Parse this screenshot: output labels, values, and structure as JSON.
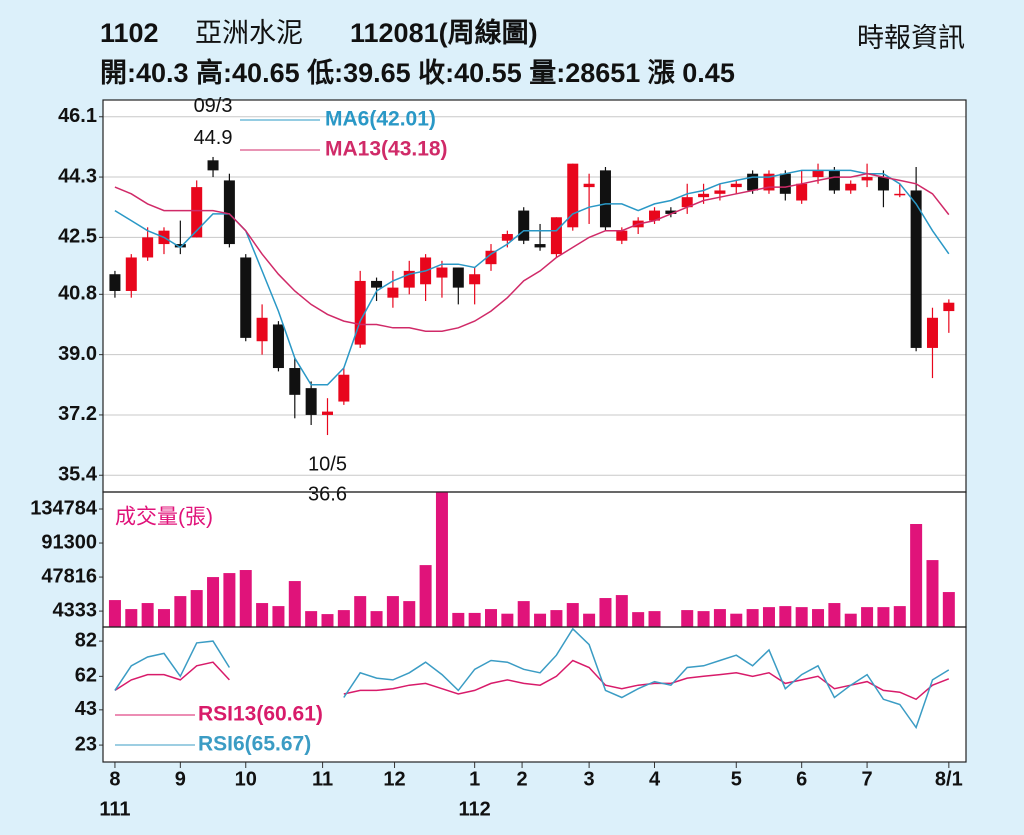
{
  "header": {
    "code": "1102",
    "name": "亞洲水泥",
    "period": "112081(周線圖)",
    "source": "時報資訊",
    "quote": "開:40.3 高:40.65 低:39.65 收:40.55 量:28651 漲 0.45"
  },
  "chart_data": [
    {
      "type": "candlestick",
      "up_color": "#e8061c",
      "down_color": "#111111",
      "grid": true,
      "xlim": [
        -0.73,
        52.05
      ],
      "ylim": [
        34.9,
        46.6
      ],
      "yticks": [
        46.1,
        44.3,
        42.5,
        40.8,
        {
          "value": 39,
          "label": "39.0"
        },
        37.2,
        35.4
      ],
      "open": [
        41.4,
        40.9,
        41.9,
        42.3,
        42.3,
        42.5,
        44.8,
        44.2,
        41.9,
        39.4,
        39.9,
        38.6,
        38.0,
        37.2,
        37.6,
        39.3,
        41.2,
        40.7,
        41.0,
        41.1,
        41.3,
        41.6,
        41.1,
        41.7,
        42.4,
        43.3,
        42.3,
        42.0,
        42.8,
        44.0,
        44.5,
        42.4,
        42.8,
        43.0,
        43.3,
        43.4,
        43.7,
        43.8,
        44.0,
        44.4,
        43.9,
        44.4,
        43.6,
        44.3,
        44.5,
        43.9,
        44.2,
        44.3,
        43.8,
        43.9,
        39.2,
        40.3
      ],
      "high": [
        41.5,
        42.0,
        42.8,
        42.8,
        43.0,
        44.2,
        44.9,
        44.4,
        42.0,
        40.5,
        40.0,
        38.9,
        38.2,
        37.7,
        38.6,
        41.5,
        41.3,
        41.5,
        41.8,
        42.0,
        41.8,
        41.6,
        41.6,
        42.3,
        42.7,
        43.4,
        42.9,
        43.1,
        44.7,
        44.4,
        44.6,
        42.8,
        43.1,
        43.4,
        43.4,
        44.1,
        44.1,
        44.1,
        44.2,
        44.5,
        44.5,
        44.5,
        44.5,
        44.7,
        44.6,
        44.2,
        44.7,
        44.5,
        44.1,
        44.6,
        40.4,
        40.65
      ],
      "low": [
        40.7,
        40.7,
        41.8,
        42.0,
        42.0,
        42.5,
        44.3,
        42.2,
        39.4,
        39.0,
        38.5,
        37.1,
        36.9,
        36.6,
        37.5,
        39.2,
        40.6,
        40.4,
        40.8,
        40.6,
        40.7,
        40.5,
        40.5,
        41.5,
        42.2,
        42.3,
        42.1,
        41.9,
        42.7,
        42.9,
        42.7,
        42.3,
        42.6,
        42.9,
        43.1,
        43.2,
        43.5,
        43.6,
        43.8,
        43.8,
        43.8,
        43.6,
        43.5,
        44.1,
        43.8,
        43.8,
        44.0,
        43.4,
        43.7,
        39.1,
        38.3,
        39.65
      ],
      "close": [
        40.9,
        41.9,
        42.5,
        42.7,
        42.2,
        44.0,
        44.5,
        42.3,
        39.5,
        40.1,
        38.6,
        37.8,
        37.2,
        37.3,
        38.4,
        41.2,
        41.0,
        41.0,
        41.5,
        41.9,
        41.6,
        41.0,
        41.4,
        42.1,
        42.6,
        42.4,
        42.2,
        43.1,
        44.7,
        44.1,
        42.8,
        42.7,
        43.0,
        43.3,
        43.2,
        43.7,
        43.8,
        43.9,
        44.1,
        43.9,
        44.4,
        43.8,
        44.1,
        44.5,
        43.9,
        44.1,
        44.3,
        43.9,
        43.8,
        39.2,
        40.1,
        40.55
      ],
      "series": [
        {
          "name": "MA6(42.01)",
          "color": "#2a98c6",
          "values": [
            43.3,
            43.0,
            42.7,
            42.5,
            42.2,
            42.7,
            43.2,
            43.2,
            42.7,
            41.5,
            40.3,
            38.9,
            38.1,
            38.1,
            38.6,
            40.0,
            40.9,
            41.2,
            41.4,
            41.5,
            41.7,
            41.7,
            41.6,
            42.0,
            42.3,
            42.7,
            42.7,
            42.7,
            43.2,
            43.4,
            43.5,
            43.5,
            43.3,
            43.5,
            43.6,
            43.8,
            43.9,
            44.1,
            44.2,
            44.3,
            44.3,
            44.4,
            44.5,
            44.5,
            44.5,
            44.5,
            44.4,
            44.4,
            44.1,
            43.5,
            42.7,
            42.01
          ]
        },
        {
          "name": "MA13(43.18)",
          "color": "#d02a68",
          "values": [
            44.0,
            43.8,
            43.5,
            43.3,
            43.3,
            43.3,
            43.3,
            43.2,
            42.7,
            42.0,
            41.4,
            40.9,
            40.5,
            40.2,
            40.0,
            39.9,
            39.9,
            39.8,
            39.8,
            39.7,
            39.7,
            39.8,
            40.0,
            40.3,
            40.7,
            41.2,
            41.5,
            41.9,
            42.2,
            42.5,
            42.7,
            42.7,
            42.9,
            43.0,
            43.2,
            43.4,
            43.6,
            43.7,
            43.8,
            43.9,
            44.0,
            44.0,
            44.1,
            44.2,
            44.3,
            44.3,
            44.4,
            44.3,
            44.2,
            44.1,
            43.8,
            43.18
          ]
        }
      ],
      "annotations": [
        {
          "date": "09/3",
          "value": 44.9,
          "x": 6,
          "position": "above"
        },
        {
          "date": "10/5",
          "value": 36.6,
          "x": 13,
          "position": "below"
        }
      ]
    },
    {
      "type": "bar",
      "title": "成交量(張)",
      "color": "#e0137a",
      "xlim": [
        -0.73,
        52.05
      ],
      "ylim": [
        -16000,
        156500
      ],
      "yticks": [
        134784,
        91300,
        47816,
        4333
      ],
      "values": [
        18400,
        6900,
        14600,
        6900,
        23500,
        31200,
        47800,
        52900,
        56800,
        14600,
        10700,
        42700,
        4300,
        500,
        5600,
        23500,
        4300,
        23500,
        17100,
        63100,
        156000,
        2000,
        2000,
        6900,
        1000,
        17100,
        1000,
        5600,
        14600,
        1000,
        21000,
        24800,
        3000,
        4300,
        null,
        5600,
        4300,
        6900,
        1000,
        6900,
        9400,
        10700,
        9400,
        6900,
        14600,
        1000,
        9400,
        9400,
        10700,
        115600,
        69500,
        28651
      ]
    },
    {
      "type": "line",
      "xlim": [
        -0.73,
        52.05
      ],
      "ylim": [
        13.4,
        90
      ],
      "yticks": [
        82,
        62,
        43,
        23
      ],
      "xticks": [
        {
          "value": 0,
          "label": "8"
        },
        {
          "value": 4,
          "label": "9"
        },
        {
          "value": 8,
          "label": "10"
        },
        {
          "value": 12.7,
          "label": "11"
        },
        {
          "value": 17.1,
          "label": "12"
        },
        {
          "value": 22,
          "label": "1"
        },
        {
          "value": 24.9,
          "label": "2"
        },
        {
          "value": 29,
          "label": "3"
        },
        {
          "value": 33,
          "label": "4"
        },
        {
          "value": 38,
          "label": "5"
        },
        {
          "value": 42,
          "label": "6"
        },
        {
          "value": 46,
          "label": "7"
        },
        {
          "value": 51,
          "label": "8/1"
        }
      ],
      "year_labels": [
        {
          "value": 0,
          "label": "111"
        },
        {
          "value": 22,
          "label": "112"
        }
      ],
      "series": [
        {
          "name": "RSI13(60.61)",
          "color": "#d81b6a",
          "values": [
            54,
            60,
            63,
            63,
            60,
            68,
            70,
            60,
            null,
            null,
            null,
            null,
            null,
            null,
            52,
            54,
            54,
            55,
            57,
            58,
            55,
            52,
            54,
            58,
            60,
            58,
            57,
            62,
            71,
            67,
            57,
            55,
            57,
            58,
            58,
            61,
            62,
            63,
            64,
            62,
            64,
            58,
            60,
            62,
            55,
            57,
            59,
            54,
            53,
            49,
            57,
            60.61
          ]
        },
        {
          "name": "RSI6(65.67)",
          "color": "#3b9cc4",
          "values": [
            54,
            68,
            73,
            75,
            62,
            81,
            82,
            67,
            null,
            null,
            null,
            null,
            null,
            null,
            50,
            64,
            61,
            60,
            64,
            70,
            63,
            54,
            66,
            71,
            70,
            66,
            64,
            74,
            89,
            80,
            54,
            50,
            55,
            59,
            57,
            67,
            68,
            71,
            74,
            68,
            77,
            55,
            63,
            68,
            50,
            57,
            63,
            49,
            46,
            33,
            60,
            65.67
          ]
        }
      ]
    }
  ]
}
